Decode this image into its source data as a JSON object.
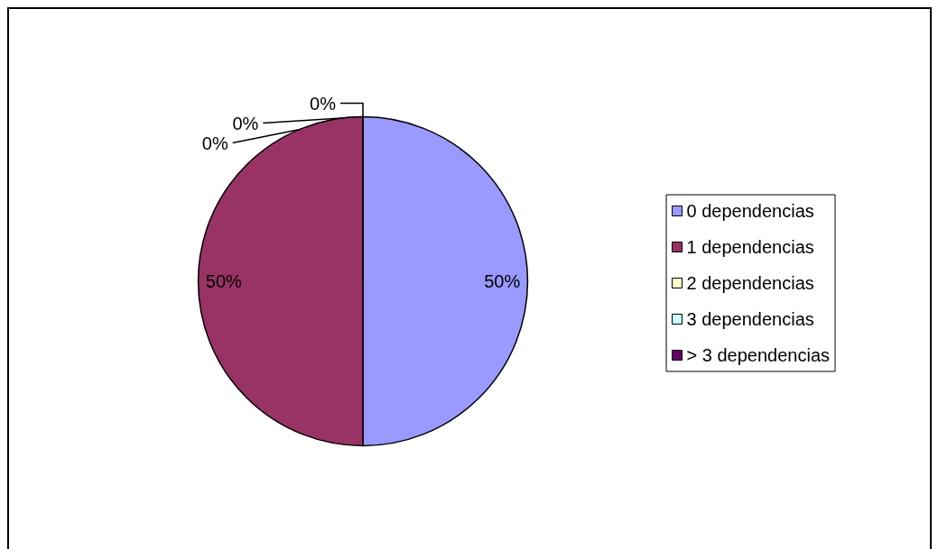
{
  "chart_data": {
    "type": "pie",
    "categories": [
      "0 dependencias",
      "1 dependencias",
      "2 dependencias",
      "3 dependencias",
      "> 3 dependencias"
    ],
    "values": [
      50,
      50,
      0,
      0,
      0
    ],
    "colors": [
      "#9999ff",
      "#993366",
      "#ffffcc",
      "#ccffff",
      "#660066"
    ],
    "value_labels": [
      "50%",
      "50%",
      "0%",
      "0%",
      "0%"
    ],
    "legend": "right"
  }
}
